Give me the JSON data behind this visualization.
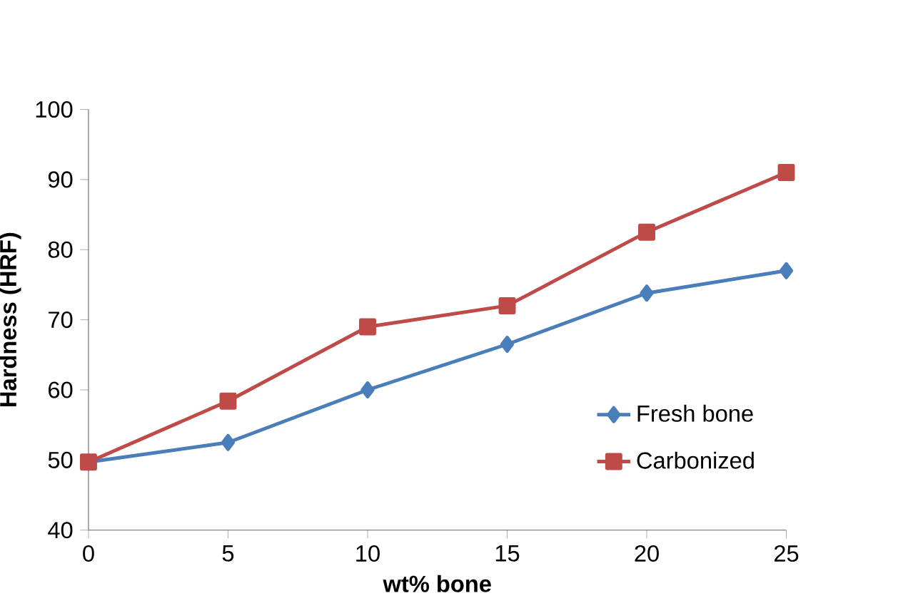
{
  "chart_data": {
    "type": "line",
    "xlabel": "wt% bone",
    "ylabel": "Hardness (HRF)",
    "x": [
      0,
      5,
      10,
      15,
      20,
      25
    ],
    "series": [
      {
        "name": "Fresh bone",
        "color": "#4a7ebb",
        "marker": "diamond",
        "values": [
          49.7,
          52.5,
          60,
          66.5,
          73.8,
          77
        ]
      },
      {
        "name": "Carbonized",
        "color": "#be4b48",
        "marker": "square",
        "values": [
          49.7,
          58.4,
          69,
          72,
          82.5,
          91
        ]
      }
    ],
    "xlim": [
      0,
      25
    ],
    "ylim": [
      40,
      100
    ],
    "xticks": [
      0,
      5,
      10,
      15,
      20,
      25
    ],
    "yticks": [
      40,
      50,
      60,
      70,
      80,
      90,
      100
    ],
    "grid": false,
    "legend": "bottom right"
  }
}
